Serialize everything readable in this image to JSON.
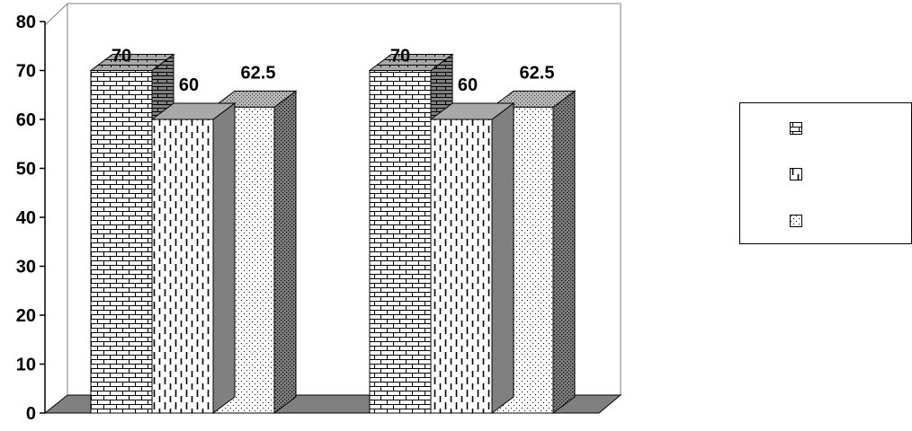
{
  "chart_data": {
    "type": "bar",
    "subtype": "3d-clustered-column",
    "categories": [
      "",
      ""
    ],
    "series": [
      {
        "pattern": "brick",
        "values": [
          70,
          70
        ]
      },
      {
        "pattern": "dashed-vertical",
        "values": [
          60,
          60
        ]
      },
      {
        "pattern": "dotted",
        "values": [
          62.5,
          62.5
        ]
      }
    ],
    "data_labels": [
      [
        "70",
        "70"
      ],
      [
        "60",
        "60"
      ],
      [
        "62.5",
        "62.5"
      ]
    ],
    "ylim": [
      0,
      80
    ],
    "yticks": [
      "0",
      "10",
      "20",
      "30",
      "40",
      "50",
      "60",
      "70",
      "80"
    ],
    "xlabel": "",
    "ylabel": "",
    "title": "",
    "grid": false,
    "legend": {
      "position": "right",
      "entries": [
        "",
        "",
        ""
      ]
    },
    "colors": {
      "side_dark": "#808080",
      "top_light": "#c0c0c0",
      "floor": "#808080",
      "frame": "#808080"
    }
  }
}
